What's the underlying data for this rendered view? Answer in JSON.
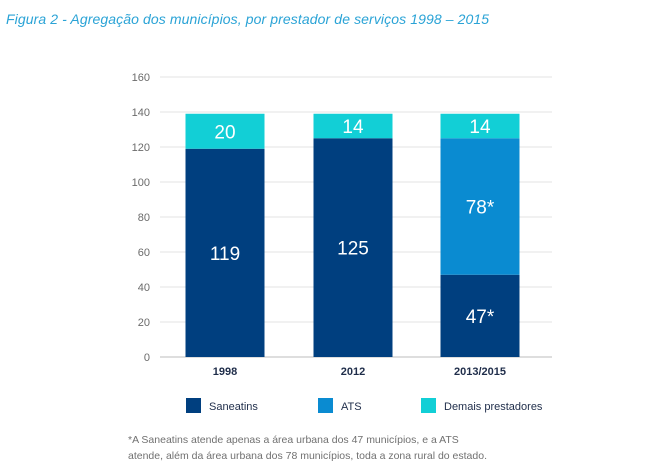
{
  "figure": {
    "title": "Figura 2 - Agregação dos municípios, por prestador de serviços 1998 – 2015"
  },
  "chart_data": {
    "type": "bar",
    "stacked": true,
    "categories": [
      "1998",
      "2012",
      "2013/2015"
    ],
    "series": [
      {
        "name": "Saneatins",
        "color": "#003f7f",
        "values": [
          119,
          125,
          47
        ],
        "labels": [
          "119",
          "125",
          "47*"
        ]
      },
      {
        "name": "ATS",
        "color": "#0a8bd1",
        "values": [
          0,
          0,
          78
        ],
        "labels": [
          "",
          "",
          "78*"
        ]
      },
      {
        "name": "Demais prestadores",
        "color": "#12cfd6",
        "values": [
          20,
          14,
          14
        ],
        "labels": [
          "20",
          "14",
          "14"
        ]
      }
    ],
    "ylim": [
      0,
      160
    ],
    "yticks": [
      0,
      20,
      40,
      60,
      80,
      100,
      120,
      140,
      160
    ],
    "grid": true,
    "legend_position": "bottom"
  },
  "footnote": {
    "line1": "*A Saneatins atende apenas a área urbana dos 47 municípios, e a ATS",
    "line2": "atende, além da área urbana dos 78 municípios, toda a zona rural do estado."
  }
}
